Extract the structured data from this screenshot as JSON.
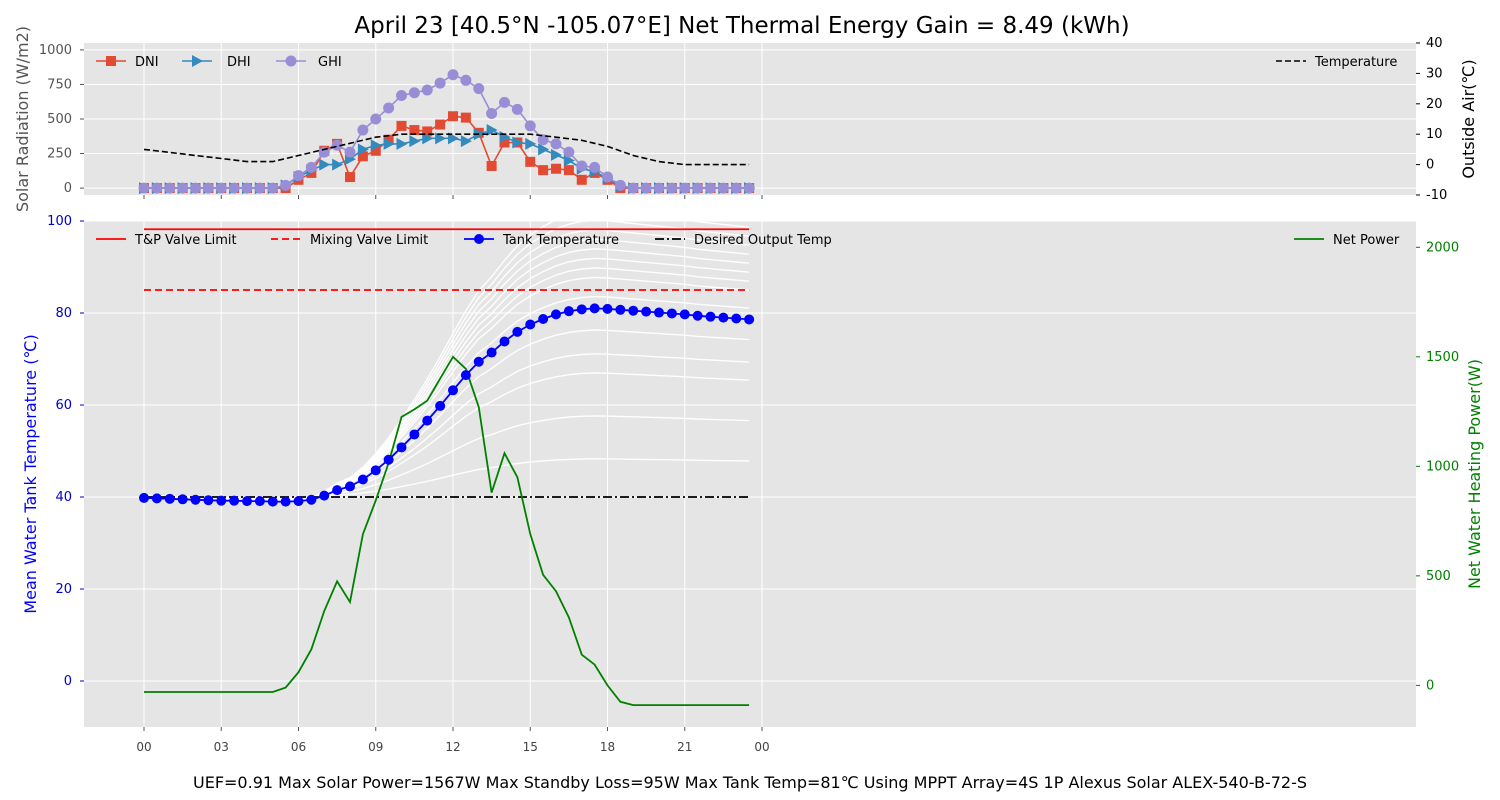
{
  "title": "April 23 [40.5°N -105.07°E] Net Thermal Energy Gain = 8.49 (kWh)",
  "footer": "UEF=0.91   Max Solar Power=1567W   Max Standby Loss=95W   Max Tank Temp=81℃ Using MPPT  Array=4S 1P Alexus Solar ALEX-540-B-72-S",
  "colors": {
    "panel_bg": "#e5e5e5",
    "grid": "#ffffff",
    "dni": "#e24a33",
    "dhi": "#348abd",
    "ghi": "#988ed5",
    "temperature": "#000000",
    "tp_limit": "#ff0000",
    "mixing_limit": "#ff0000",
    "tank": "#0000ff",
    "desired": "#000000",
    "net_power": "#008000",
    "ensemble": "#ffffff"
  },
  "chart_data": [
    {
      "type": "line",
      "panel": "solar",
      "x_ticks": [
        "00",
        "03",
        "06",
        "09",
        "12",
        "15",
        "18",
        "21",
        "00"
      ],
      "ylabel": "Solar Radiation (W/m2)",
      "y2label": "Outside Air(℃)",
      "ylim": [
        -50,
        1050
      ],
      "y_ticks": [
        0,
        250,
        500,
        750,
        1000
      ],
      "y2lim": [
        -10,
        40
      ],
      "y2_ticks": [
        -10,
        0,
        10,
        20,
        30,
        40
      ],
      "x_hours": [
        0,
        0.5,
        1,
        1.5,
        2,
        2.5,
        3,
        3.5,
        4,
        4.5,
        5,
        5.5,
        6,
        6.5,
        7,
        7.5,
        8,
        8.5,
        9,
        9.5,
        10,
        10.5,
        11,
        11.5,
        12,
        12.5,
        13,
        13.5,
        14,
        14.5,
        15,
        15.5,
        16,
        16.5,
        17,
        17.5,
        18,
        18.5,
        19,
        19.5,
        20,
        20.5,
        21,
        21.5,
        22,
        22.5,
        23,
        23.5
      ],
      "series": [
        {
          "name": "DNI",
          "axis": "left",
          "marker": "square",
          "values": [
            0,
            0,
            0,
            0,
            0,
            0,
            0,
            0,
            0,
            0,
            0,
            0,
            60,
            110,
            270,
            320,
            80,
            230,
            270,
            350,
            450,
            420,
            410,
            460,
            520,
            510,
            400,
            160,
            330,
            330,
            190,
            130,
            140,
            130,
            60,
            110,
            60,
            0,
            0,
            0,
            0,
            0,
            0,
            0,
            0,
            0,
            0,
            0
          ]
        },
        {
          "name": "DHI",
          "axis": "left",
          "marker": "triangle",
          "values": [
            0,
            0,
            0,
            0,
            0,
            0,
            0,
            0,
            0,
            0,
            0,
            20,
            80,
            130,
            170,
            170,
            210,
            280,
            310,
            320,
            320,
            340,
            360,
            360,
            360,
            340,
            390,
            420,
            370,
            330,
            320,
            280,
            240,
            200,
            140,
            120,
            70,
            10,
            0,
            0,
            0,
            0,
            0,
            0,
            0,
            0,
            0,
            0
          ]
        },
        {
          "name": "GHI",
          "axis": "left",
          "marker": "circle",
          "values": [
            0,
            0,
            0,
            0,
            0,
            0,
            0,
            0,
            0,
            0,
            0,
            20,
            90,
            150,
            260,
            310,
            260,
            420,
            500,
            580,
            670,
            690,
            710,
            760,
            820,
            780,
            720,
            540,
            620,
            570,
            450,
            350,
            320,
            260,
            160,
            150,
            80,
            20,
            0,
            0,
            0,
            0,
            0,
            0,
            0,
            0,
            0,
            0
          ]
        },
        {
          "name": "Temperature",
          "axis": "right",
          "marker": "none",
          "hours": [
            0,
            1,
            2,
            3,
            4,
            5,
            6,
            7,
            8,
            9,
            10,
            11,
            12,
            13,
            14,
            15,
            16,
            17,
            18,
            19,
            20,
            21,
            22,
            23.5
          ],
          "values": [
            5,
            4,
            3,
            2,
            1,
            1,
            3,
            5,
            7,
            9,
            10,
            10,
            10,
            10,
            10,
            10,
            9,
            8,
            6,
            3,
            1,
            0,
            0,
            0
          ]
        }
      ]
    },
    {
      "type": "line",
      "panel": "tank",
      "x_ticks": [
        "00",
        "03",
        "06",
        "09",
        "12",
        "15",
        "18",
        "21",
        "00"
      ],
      "ylabel": "Mean Water Tank Temperature (℃)",
      "y2label": "Net Water Heating Power(W)",
      "ylim": [
        -10,
        100
      ],
      "y_ticks": [
        0,
        20,
        40,
        60,
        80,
        100
      ],
      "y2lim": [
        -190,
        2120
      ],
      "y2_ticks": [
        0,
        500,
        1000,
        1500,
        2000
      ],
      "x_hours": [
        0,
        0.5,
        1,
        1.5,
        2,
        2.5,
        3,
        3.5,
        4,
        4.5,
        5,
        5.5,
        6,
        6.5,
        7,
        7.5,
        8,
        8.5,
        9,
        9.5,
        10,
        10.5,
        11,
        11.5,
        12,
        12.5,
        13,
        13.5,
        14,
        14.5,
        15,
        15.5,
        16,
        16.5,
        17,
        17.5,
        18,
        18.5,
        19,
        19.5,
        20,
        20.5,
        21,
        21.5,
        22,
        22.5,
        23,
        23.5
      ],
      "series": [
        {
          "name": "T&P Valve Limit",
          "axis": "left",
          "style": "solid",
          "constant": 98.2
        },
        {
          "name": "Mixing Valve Limit",
          "axis": "left",
          "style": "dashed",
          "constant": 85
        },
        {
          "name": "Tank Temperature",
          "axis": "left",
          "marker": "circle",
          "values": [
            39.8,
            39.7,
            39.6,
            39.5,
            39.4,
            39.3,
            39.2,
            39.2,
            39.1,
            39.1,
            39.0,
            39.0,
            39.1,
            39.4,
            40.3,
            41.5,
            42.3,
            43.8,
            45.8,
            48.1,
            50.8,
            53.6,
            56.6,
            59.8,
            63.2,
            66.5,
            69.4,
            71.4,
            73.8,
            75.9,
            77.5,
            78.7,
            79.7,
            80.4,
            80.8,
            81.0,
            80.9,
            80.7,
            80.5,
            80.3,
            80.1,
            79.9,
            79.7,
            79.4,
            79.2,
            79.0,
            78.8,
            78.6
          ]
        },
        {
          "name": "Desired Output Temp",
          "axis": "left",
          "style": "dashdot",
          "constant": 40
        },
        {
          "name": "Net Power",
          "axis": "right",
          "values": [
            -30,
            -30,
            -30,
            -30,
            -30,
            -30,
            -30,
            -30,
            -30,
            -30,
            -30,
            -10,
            60,
            165,
            340,
            475,
            380,
            690,
            845,
            1015,
            1225,
            1260,
            1300,
            1400,
            1500,
            1445,
            1270,
            880,
            1060,
            950,
            690,
            505,
            430,
            310,
            140,
            95,
            0,
            -75,
            -90,
            -90,
            -90,
            -90,
            -90,
            -90,
            -90,
            -90,
            -90,
            -90
          ]
        }
      ]
    }
  ]
}
